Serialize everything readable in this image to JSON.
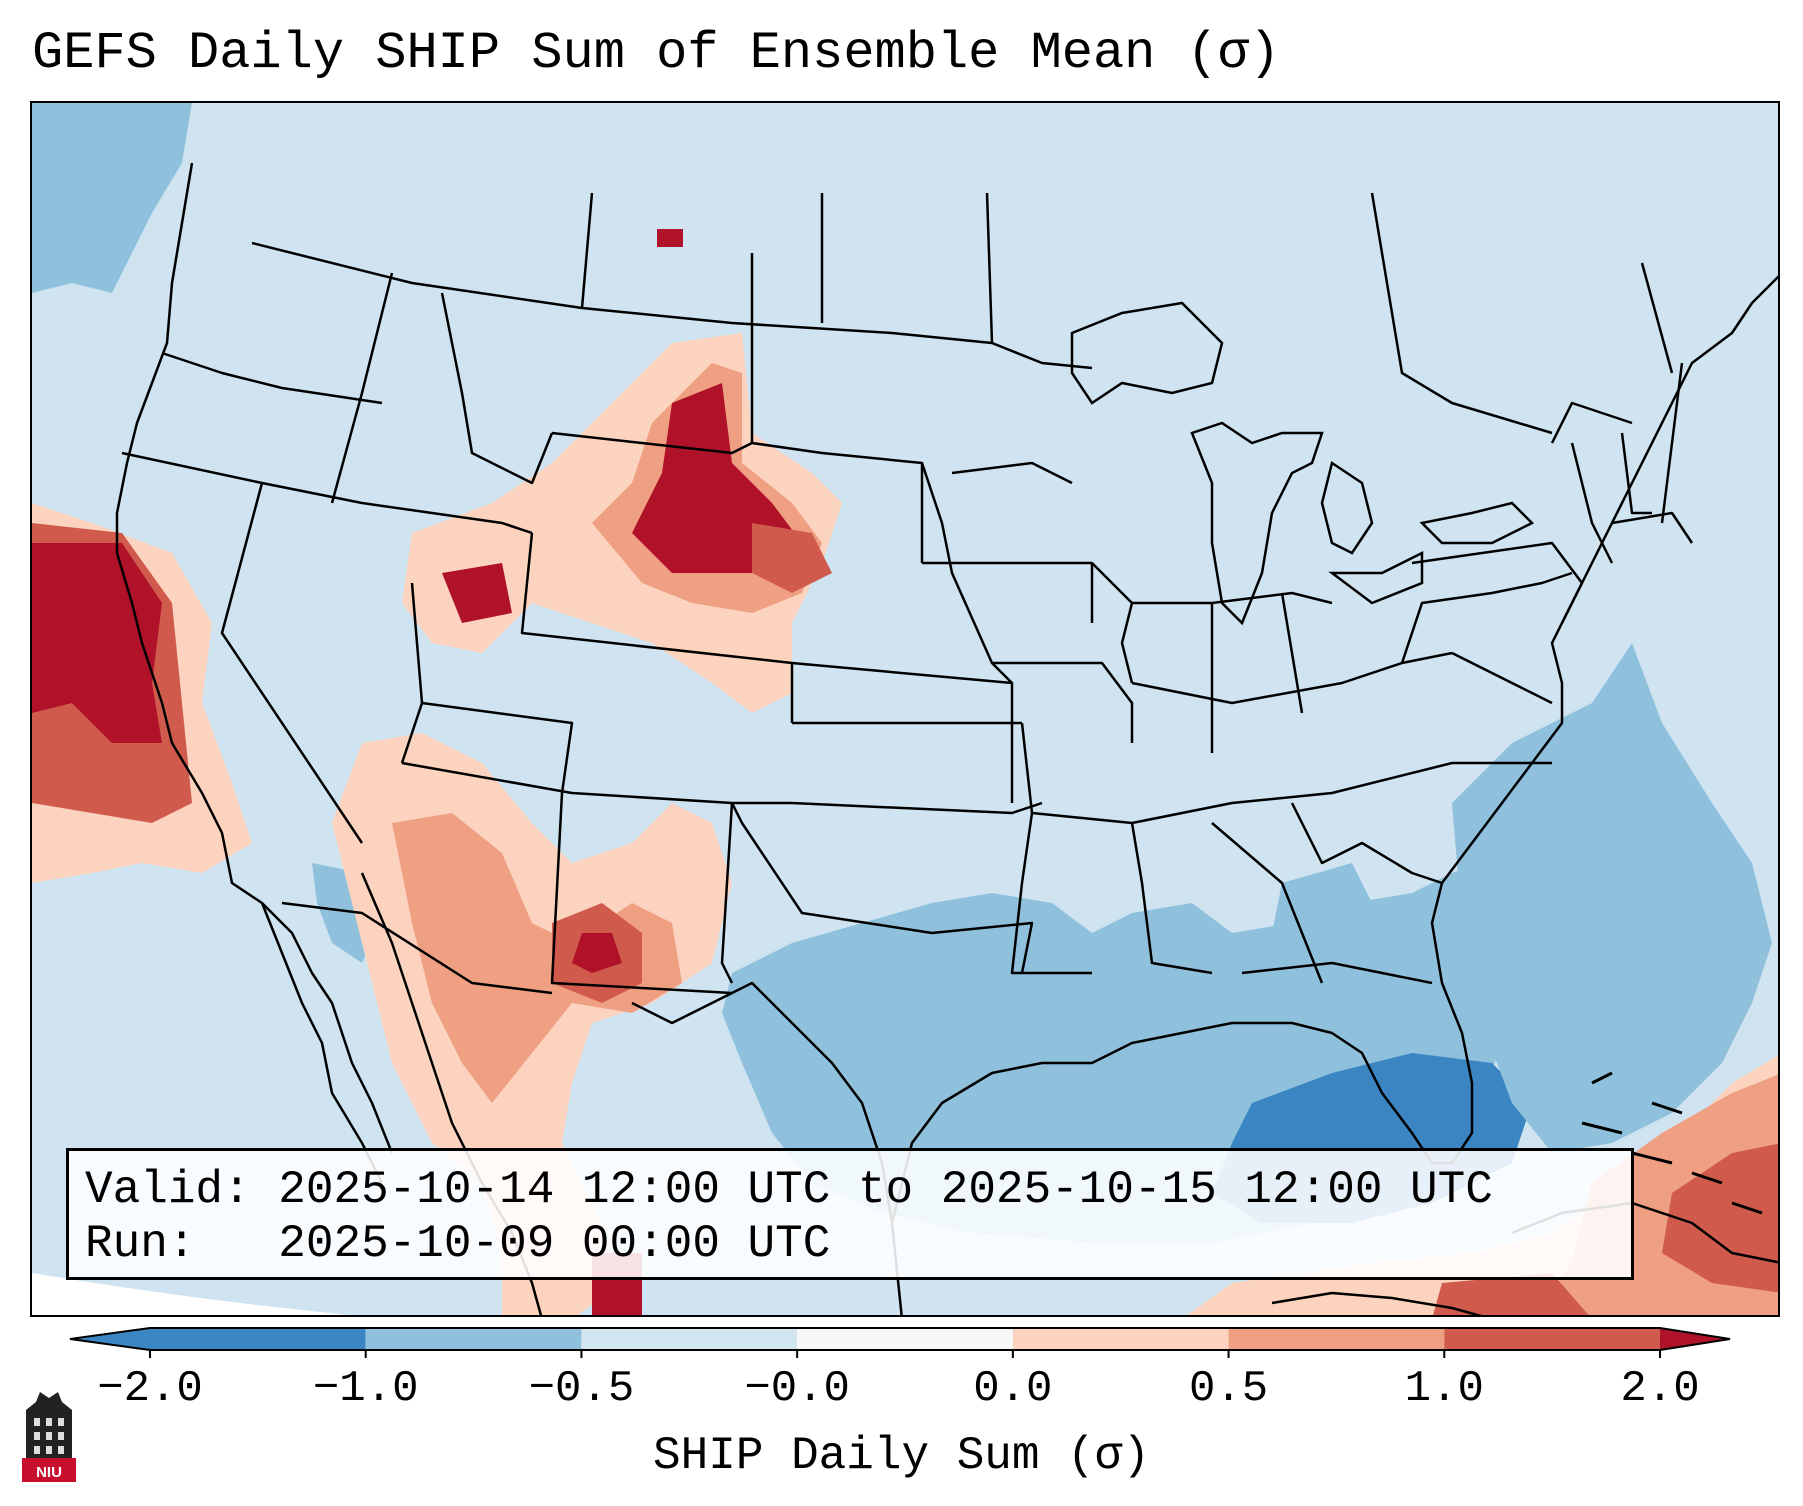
{
  "title": "GEFS Daily SHIP Sum of Ensemble Mean (σ)",
  "info": {
    "valid_label": "Valid:",
    "valid_value": "2025-10-14 12:00 UTC to 2025-10-15 12:00 UTC",
    "run_label": "Run:",
    "run_value": "2025-10-09 00:00 UTC"
  },
  "colorbar": {
    "label": "SHIP Daily Sum (σ)",
    "ticks": [
      "−2.0",
      "−1.0",
      "−0.5",
      "−0.0",
      "0.0",
      "0.5",
      "1.0",
      "2.0"
    ],
    "colors": [
      "#3b86c2",
      "#8fc1dd",
      "#d2e5f0",
      "#f7f7f7",
      "#fcd3bf",
      "#ef9f82",
      "#d05a4c",
      "#b0122a"
    ],
    "extend": "both"
  },
  "colors": {
    "neutral_negative": "#d2e5f0",
    "light_blue": "#8fc1dd",
    "mid_blue": "#3b86c2",
    "light_red": "#fcd3bf",
    "mid_red": "#ef9f82",
    "strong_red": "#d05a4c",
    "dark_red": "#b0122a"
  },
  "logo": {
    "icon": "niu-tower-logo",
    "text": "NIU"
  }
}
